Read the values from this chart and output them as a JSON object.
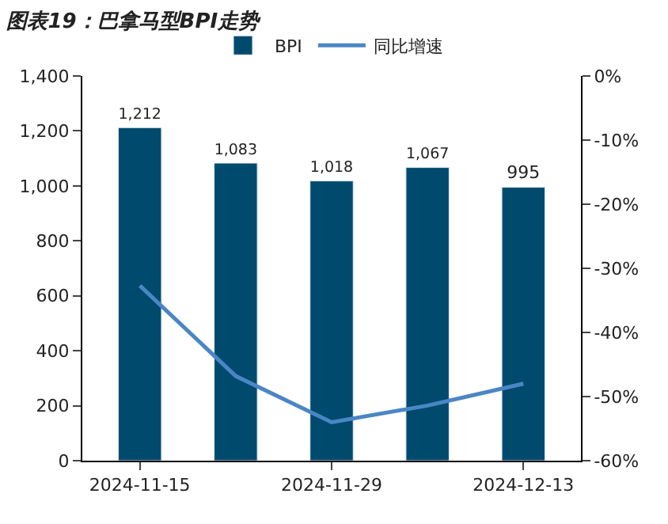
{
  "chart_data": {
    "type": "bar",
    "title": "图表19：巴拿马型BPI走势",
    "categories": [
      "2024-11-15",
      null,
      "2024-11-29",
      null,
      "2024-12-13"
    ],
    "series": [
      {
        "name": "BPI",
        "color": "#004a6e",
        "values": [
          1212,
          1083,
          1018,
          1067,
          995
        ],
        "value_labels": [
          "1,212",
          "1,083",
          "1,018",
          "1,067",
          "995"
        ]
      },
      {
        "name": "同比增速",
        "type": "line",
        "axis": "y2",
        "color": "#4a86c5",
        "values": [
          -32.7,
          -46.8,
          -54,
          -51.4,
          -48
        ],
        "line_style": "solid",
        "marker": "none"
      }
    ],
    "ylim": [
      0,
      1400
    ],
    "yticks": [
      0,
      {
        "value": 200,
        "label": "200"
      },
      {
        "value": 400,
        "label": "400"
      },
      {
        "value": 600,
        "label": "600"
      },
      {
        "value": 800,
        "label": "800"
      },
      {
        "value": 1000,
        "label": "1,000"
      },
      {
        "value": 1200,
        "label": "1,200"
      },
      {
        "value": 1400,
        "label": "1,400"
      }
    ],
    "y2lim": [
      -60,
      0
    ],
    "y2ticks": [
      {
        "value": -60,
        "label": "-60%"
      },
      {
        "value": -50,
        "label": "-50%"
      },
      {
        "value": -40,
        "label": "-40%"
      },
      {
        "value": -30,
        "label": "-30%"
      },
      {
        "value": -20,
        "label": "-20%"
      },
      {
        "value": -10,
        "label": "-10%"
      },
      {
        "value": 0,
        "label": "0%"
      }
    ],
    "legend": "top"
  }
}
